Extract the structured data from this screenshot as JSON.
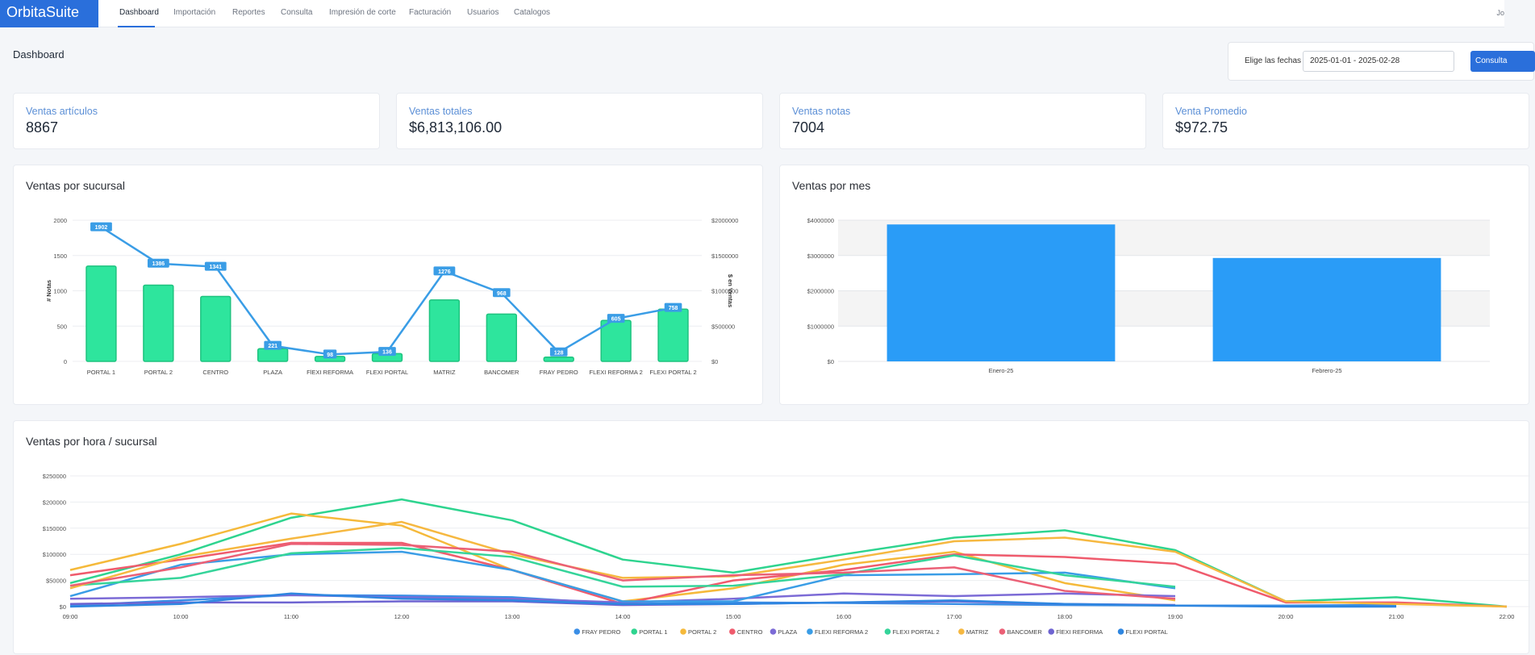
{
  "app": {
    "brand": "OrbitaSuite",
    "user": "Jo"
  },
  "nav": {
    "items": [
      {
        "label": "Dashboard",
        "active": true
      },
      {
        "label": "Importación"
      },
      {
        "label": "Reportes"
      },
      {
        "label": "Consulta"
      },
      {
        "label": "Impresión de corte"
      },
      {
        "label": "Facturación"
      },
      {
        "label": "Usuarios"
      },
      {
        "label": "Catalogos"
      }
    ]
  },
  "header": {
    "title": "Dashboard",
    "date_label": "Elige las fechas",
    "date_value": "2025-01-01 - 2025-02-28",
    "consult_label": "Consulta"
  },
  "stats": [
    {
      "label": "Ventas artículos",
      "value": "8867"
    },
    {
      "label": "Ventas totales",
      "value": "$6,813,106.00"
    },
    {
      "label": "Ventas notas",
      "value": "7004"
    },
    {
      "label": "Venta Promedio",
      "value": "$972.75"
    }
  ],
  "colors": {
    "accent": "#2a6fdb",
    "bar_green": "#2ee59d",
    "bar_green_stroke": "#1ec37f",
    "line_blue": "#3a9de6",
    "bar_blue": "#2a9cf7"
  },
  "chart_data": [
    {
      "type": "bar",
      "title": "Ventas por sucursal",
      "categories": [
        "PORTAL 1",
        "PORTAL 2",
        "CENTRO",
        "PLAZA",
        "FlEXI REFORMA",
        "FLEXI PORTAL",
        "MATRIZ",
        "BANCOMER",
        "FRAY PEDRO",
        "FLEXI REFORMA 2",
        "FLEXI PORTAL 2"
      ],
      "ylabel": "# Notas",
      "y2label": "$ en Ventas",
      "ylim": [
        0,
        2000
      ],
      "y2lim": [
        0,
        2000000
      ],
      "yticks": [
        "0",
        "500",
        "1000",
        "1500",
        "2000"
      ],
      "y2ticks": [
        "$0",
        "$500000",
        "$1000000",
        "$1500000",
        "$2000000"
      ],
      "series": [
        {
          "kind": "bar",
          "axis": "y2",
          "values": [
            1350000,
            1080000,
            920000,
            180000,
            70000,
            110000,
            870000,
            670000,
            60000,
            580000,
            740000
          ]
        },
        {
          "kind": "line",
          "axis": "y",
          "values": [
            1902,
            1386,
            1341,
            221,
            98,
            136,
            1276,
            968,
            128,
            605,
            758
          ],
          "labels": [
            "1902",
            "1386",
            "1341",
            "221",
            "98",
            "136",
            "1276",
            "968",
            "128",
            "605",
            "758"
          ]
        }
      ]
    },
    {
      "type": "bar",
      "title": "Ventas por mes",
      "categories": [
        "Enero-25",
        "Febrero-25"
      ],
      "values": [
        3880000,
        2930000
      ],
      "ylim": [
        0,
        4000000
      ],
      "yticks": [
        "$0",
        "$1000000",
        "$2000000",
        "$3000000",
        "$4000000"
      ]
    },
    {
      "type": "line",
      "title": "Ventas por hora / sucursal",
      "x": [
        "09:00",
        "10:00",
        "11:00",
        "12:00",
        "13:00",
        "14:00",
        "15:00",
        "16:00",
        "17:00",
        "18:00",
        "19:00",
        "20:00",
        "21:00",
        "22:00"
      ],
      "ylim": [
        0,
        250000
      ],
      "yticks": [
        "$0",
        "$50000",
        "$100000",
        "$150000",
        "$200000",
        "$250000"
      ],
      "legend_position": "bottom",
      "series": [
        {
          "name": "FRAY PEDRO",
          "color": "#3a8ee6",
          "values": [
            2000,
            12000,
            22000,
            21000,
            18000,
            5000,
            8000,
            7000,
            5000,
            3000,
            2000,
            2000,
            3000,
            null
          ]
        },
        {
          "name": "PORTAL 1",
          "color": "#2ed48f",
          "values": [
            45000,
            100000,
            170000,
            205000,
            165000,
            90000,
            65000,
            100000,
            132000,
            146000,
            108000,
            10000,
            18000,
            0
          ]
        },
        {
          "name": "PORTAL 2",
          "color": "#f5b93a",
          "values": [
            70000,
            120000,
            178000,
            155000,
            70000,
            10000,
            35000,
            80000,
            105000,
            45000,
            12000,
            null,
            null,
            null
          ]
        },
        {
          "name": "CENTRO",
          "color": "#ef5b6d",
          "values": [
            60000,
            90000,
            122000,
            122000,
            70000,
            5000,
            50000,
            70000,
            100000,
            95000,
            82000,
            8000,
            8000,
            0
          ]
        },
        {
          "name": "PLAZA",
          "color": "#7c6bd6",
          "values": [
            15000,
            18000,
            22000,
            18000,
            15000,
            8000,
            15000,
            25000,
            20000,
            25000,
            20000,
            null,
            null,
            null
          ]
        },
        {
          "name": "FLEXI REFORMA 2",
          "color": "#3a9de6",
          "values": [
            20000,
            80000,
            100000,
            105000,
            70000,
            10000,
            10000,
            60000,
            62000,
            65000,
            35000,
            null,
            null,
            null
          ]
        },
        {
          "name": "FLEXI PORTAL 2",
          "color": "#35d49a",
          "values": [
            40000,
            55000,
            102000,
            112000,
            95000,
            38000,
            40000,
            62000,
            98000,
            60000,
            38000,
            null,
            null,
            null
          ]
        },
        {
          "name": "MATRIZ",
          "color": "#f6b840",
          "values": [
            35000,
            95000,
            130000,
            162000,
            100000,
            55000,
            58000,
            90000,
            125000,
            132000,
            105000,
            10000,
            5000,
            0
          ]
        },
        {
          "name": "BANCOMER",
          "color": "#eb6076",
          "values": [
            40000,
            75000,
            120000,
            118000,
            105000,
            50000,
            60000,
            65000,
            75000,
            30000,
            15000,
            null,
            null,
            null
          ]
        },
        {
          "name": "FlEXI REFORMA",
          "color": "#6e64d1",
          "values": [
            5000,
            8000,
            8000,
            10000,
            10000,
            3000,
            5000,
            8000,
            10000,
            5000,
            3000,
            null,
            null,
            null
          ]
        },
        {
          "name": "FLEXI PORTAL",
          "color": "#2e86e0",
          "values": [
            0,
            5000,
            25000,
            15000,
            12000,
            5000,
            5000,
            8000,
            12000,
            5000,
            2000,
            0,
            0,
            null
          ]
        }
      ]
    }
  ]
}
